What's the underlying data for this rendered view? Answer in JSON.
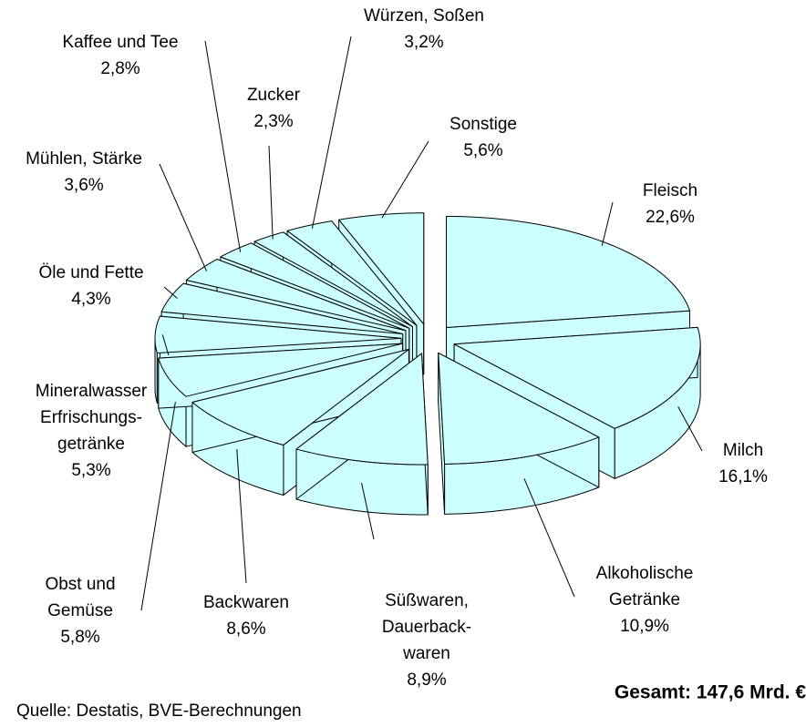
{
  "chart_data": {
    "type": "pie",
    "categories": [
      "Fleisch",
      "Milch",
      "Alkoholische\nGetränke",
      "Süßwaren,\nDauerback-\nwaren",
      "Backwaren",
      "Obst und\nGemüse",
      "Mineralwasser\nErfrischungs-\ngetränke",
      "Öle und Fette",
      "Mühlen, Stärke",
      "Kaffee und Tee",
      "Zucker",
      "Würzen, Soßen",
      "Sonstige"
    ],
    "values": [
      22.6,
      16.1,
      10.9,
      8.9,
      8.6,
      5.8,
      5.3,
      4.3,
      3.6,
      2.8,
      2.3,
      3.2,
      5.6
    ],
    "value_labels": [
      "22,6%",
      "16,1%",
      "10,9%",
      "8,9%",
      "8,6%",
      "5,8%",
      "5,3%",
      "4,3%",
      "3,6%",
      "2,8%",
      "2,3%",
      "3,2%",
      "5,6%"
    ],
    "color": "#ccffff",
    "annotations": [
      "Gesamt: 147,6 Mrd. €",
      "Quelle: Destatis, BVE-Berechnungen"
    ]
  }
}
